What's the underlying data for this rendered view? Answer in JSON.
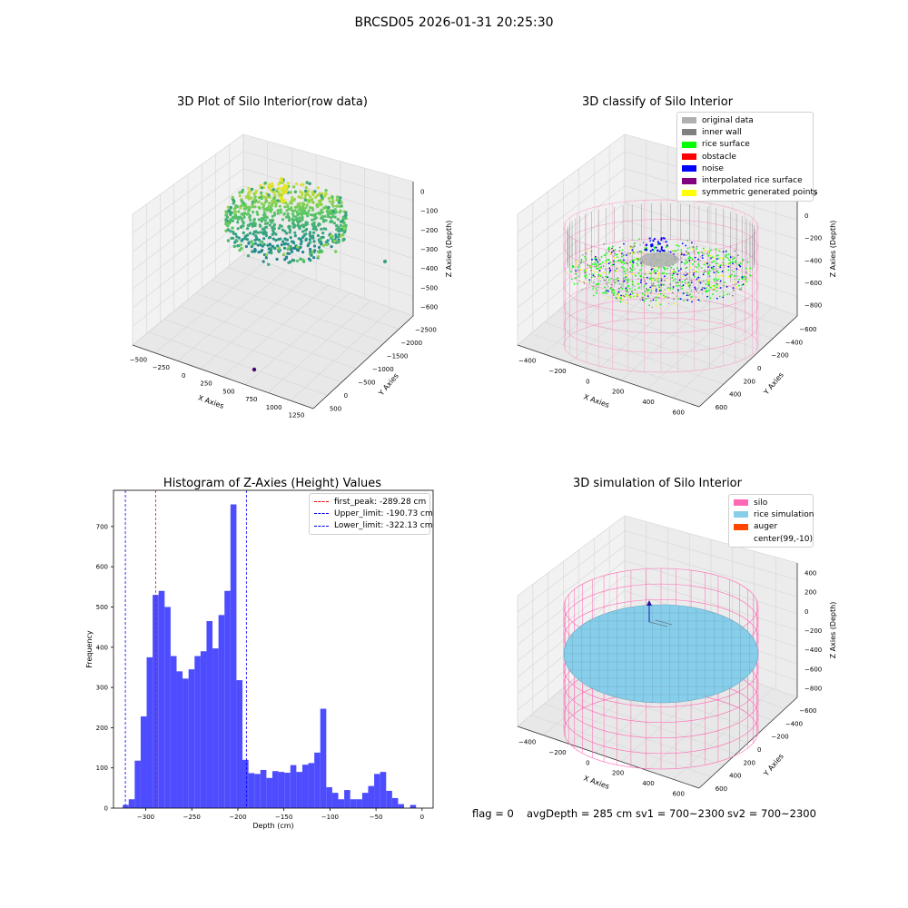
{
  "figure": {
    "suptitle": "BRCSD05 2026-01-31 20:25:30"
  },
  "status": {
    "flag": "flag = 0",
    "avg_depth": "avgDepth = 285 cm",
    "sv1": "sv1 = 700~2300",
    "sv2": "sv2 = 700~2300"
  },
  "colors": {
    "original": "#b0b0b0",
    "inner_wall": "#808080",
    "rice_surface": "#00ff00",
    "obstacle": "#ff0000",
    "noise": "#0000ff",
    "interpolated": "#800080",
    "symmetric": "#ffff00",
    "silo": "#ff69b4",
    "rice_sim": "#87ceeb",
    "auger": "#ff4500",
    "hist_bar": "#4d4dff"
  },
  "chart_data": [
    {
      "type": "scatter3d",
      "title": "3D Plot of Silo Interior(row data)",
      "xlabel": "X Axies",
      "ylabel": "Y Axies",
      "zlabel": "Z Axies (Depth)",
      "x_ticks": [
        "−500",
        "−250",
        "0",
        "250",
        "500",
        "750",
        "1000",
        "1250"
      ],
      "y_ticks": [
        "−2500",
        "−2000",
        "−1500",
        "−1000",
        "−500",
        "0",
        "500"
      ],
      "z_ticks": [
        "−600",
        "−500",
        "−400",
        "−300",
        "−200",
        "−100",
        "0"
      ],
      "colormap": "viridis"
    },
    {
      "type": "scatter3d",
      "title": "3D classify of Silo Interior",
      "xlabel": "X Axies",
      "ylabel": "Y Axies",
      "zlabel": "Z Axies (Depth)",
      "x_ticks": [
        "−400",
        "−200",
        "0",
        "200",
        "400",
        "600"
      ],
      "y_ticks": [
        "−600",
        "−400",
        "−200",
        "0",
        "200",
        "400",
        "600"
      ],
      "z_ticks": [
        "−800",
        "−600",
        "−400",
        "−200",
        "0",
        "200"
      ],
      "legend": [
        {
          "label": "original data",
          "color": "#b0b0b0"
        },
        {
          "label": "inner wall",
          "color": "#808080"
        },
        {
          "label": "rice surface",
          "color": "#00ff00"
        },
        {
          "label": "obstacle",
          "color": "#ff0000"
        },
        {
          "label": "noise",
          "color": "#0000ff"
        },
        {
          "label": "interpolated rice surface",
          "color": "#800080"
        },
        {
          "label": "symmetric generated points",
          "color": "#ffff00"
        }
      ]
    },
    {
      "type": "bar",
      "title": "Histogram of Z-Axies (Height) Values",
      "xlabel": "Depth (cm)",
      "ylabel": "Frequency",
      "xlim": [
        -335,
        12
      ],
      "ylim": [
        0,
        790
      ],
      "bin_start": -325,
      "bin_width": 6.5,
      "x_ticks": [
        -300,
        -250,
        -200,
        -150,
        -100,
        -50,
        0
      ],
      "x_tick_labels": [
        "−300",
        "−250",
        "−200",
        "−150",
        "−100",
        "−50",
        "0"
      ],
      "y_ticks": [
        0,
        100,
        200,
        300,
        400,
        500,
        600,
        700
      ],
      "values": [
        8,
        22,
        118,
        228,
        375,
        530,
        540,
        500,
        378,
        340,
        322,
        345,
        378,
        390,
        465,
        397,
        480,
        540,
        755,
        318,
        120,
        87,
        85,
        95,
        75,
        92,
        90,
        88,
        107,
        90,
        108,
        112,
        138,
        247,
        52,
        38,
        22,
        45,
        22,
        22,
        38,
        55,
        85,
        90,
        43,
        25,
        10,
        0,
        8
      ],
      "vlines": [
        {
          "label": "first_peak: -289.28 cm",
          "x": -289.28,
          "color": "#ff0000"
        },
        {
          "label": "Upper_limit: -190.73 cm",
          "x": -190.73,
          "color": "#0000ff"
        },
        {
          "label": "Lower_limit: -322.13 cm",
          "x": -322.13,
          "color": "#0000ff"
        }
      ]
    },
    {
      "type": "surface3d",
      "title": "3D simulation of Silo Interior",
      "xlabel": "X Axies",
      "ylabel": "Y Axies",
      "zlabel": "Z Axies (Depth)",
      "x_ticks": [
        "−400",
        "−200",
        "0",
        "200",
        "400",
        "600"
      ],
      "y_ticks": [
        "−600",
        "−400",
        "−200",
        "0",
        "200",
        "400",
        "600"
      ],
      "z_ticks": [
        "−800",
        "−600",
        "−400",
        "−200",
        "0",
        "200",
        "400"
      ],
      "legend": [
        {
          "label": "silo",
          "color": "#ff69b4"
        },
        {
          "label": "rice simulation",
          "color": "#87ceeb"
        },
        {
          "label": "auger",
          "color": "#ff4500"
        },
        {
          "label": "center(99,-10)",
          "color": ""
        }
      ]
    }
  ]
}
